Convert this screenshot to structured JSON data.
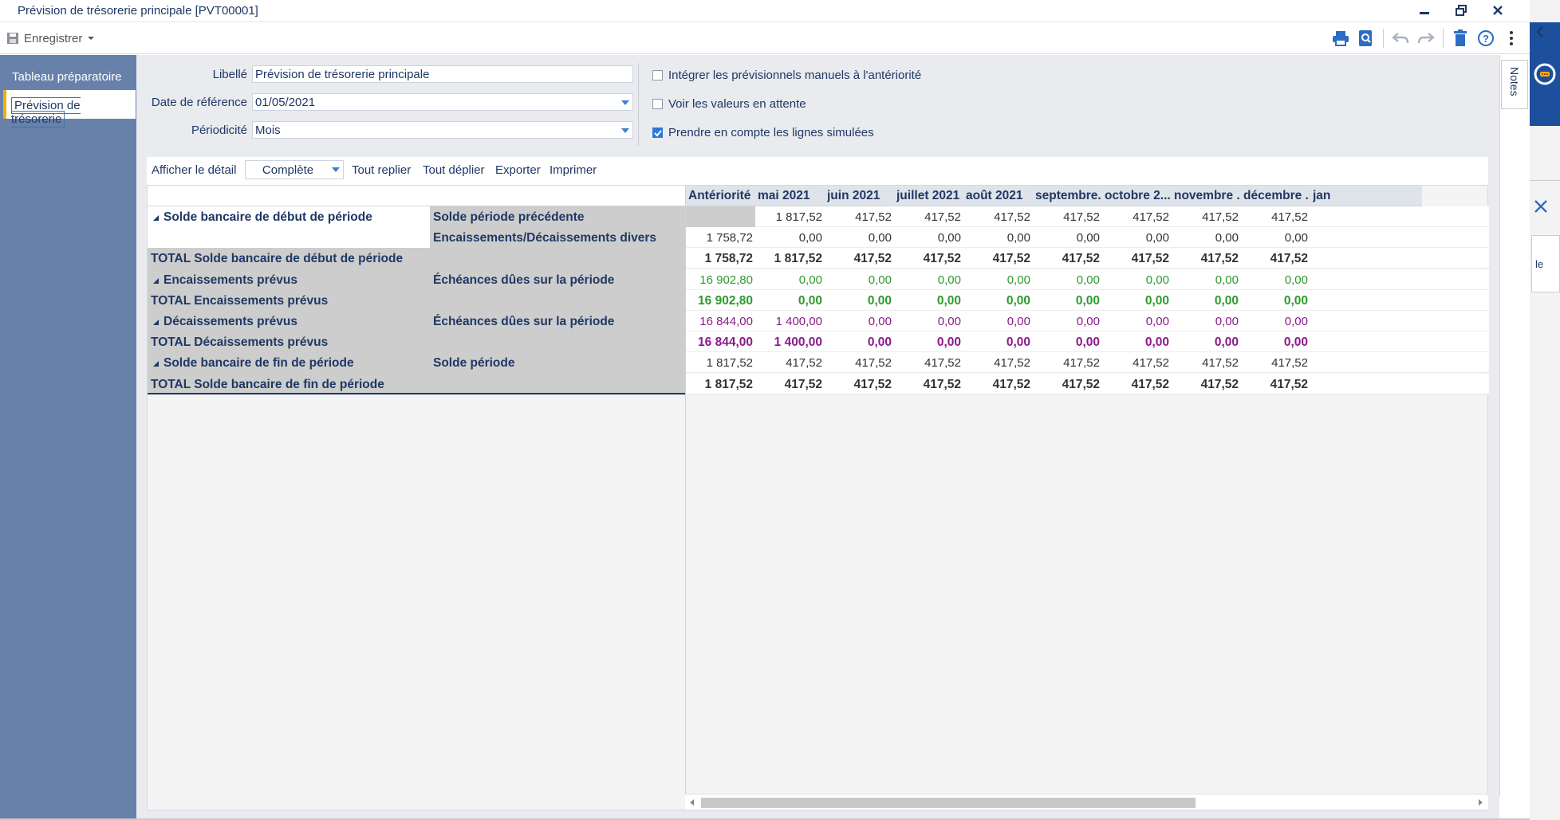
{
  "window": {
    "title": "Prévision de trésorerie principale [PVT00001]"
  },
  "toolbar": {
    "save_label": "Enregistrer"
  },
  "sidebar": {
    "items": [
      {
        "label": "Tableau préparatoire"
      },
      {
        "label": "Prévision de trésorerie"
      }
    ]
  },
  "form": {
    "libelle_label": "Libellé",
    "libelle_value": "Prévision de trésorerie principale",
    "date_label": "Date de référence",
    "date_value": "01/05/2021",
    "periodicite_label": "Périodicité",
    "periodicite_value": "Mois",
    "checkboxes": [
      {
        "label": "Intégrer les prévisionnels manuels à l'antériorité",
        "checked": false
      },
      {
        "label": "Voir les valeurs en attente",
        "checked": false
      },
      {
        "label": "Prendre en compte les lignes simulées",
        "checked": true
      }
    ]
  },
  "actions": {
    "detail_label": "Afficher le détail",
    "detail_value": "Complète",
    "collapse_all": "Tout replier",
    "expand_all": "Tout déplier",
    "export": "Exporter",
    "print": "Imprimer"
  },
  "notes_tab": "Notes",
  "sidepanel_fragment": "le",
  "grid": {
    "headers": [
      "Antériorité",
      "mai 2021",
      "juin 2021",
      "juillet 2021",
      "août 2021",
      "septembre...",
      "octobre 2...",
      "novembre ...",
      "décembre ...",
      "jan"
    ],
    "rows": [
      {
        "group": "Solde bancaire de début de période",
        "sub": "Solde période précédente",
        "style": "k",
        "values": [
          "",
          "1 817,52",
          "417,52",
          "417,52",
          "417,52",
          "417,52",
          "417,52",
          "417,52",
          "417,52"
        ]
      },
      {
        "group": "",
        "sub": "Encaissements/Décaissements divers",
        "style": "k",
        "values": [
          "1 758,72",
          "0,00",
          "0,00",
          "0,00",
          "0,00",
          "0,00",
          "0,00",
          "0,00",
          "0,00"
        ]
      },
      {
        "group": "TOTAL Solde bancaire de début de période",
        "sub": "",
        "style": "k b",
        "values": [
          "1 758,72",
          "1 817,52",
          "417,52",
          "417,52",
          "417,52",
          "417,52",
          "417,52",
          "417,52",
          "417,52"
        ]
      },
      {
        "group": "Encaissements prévus",
        "sub": "Échéances dûes sur la période",
        "style": "g",
        "values": [
          "16 902,80",
          "0,00",
          "0,00",
          "0,00",
          "0,00",
          "0,00",
          "0,00",
          "0,00",
          "0,00"
        ]
      },
      {
        "group": "TOTAL Encaissements prévus",
        "sub": "",
        "style": "g b",
        "values": [
          "16 902,80",
          "0,00",
          "0,00",
          "0,00",
          "0,00",
          "0,00",
          "0,00",
          "0,00",
          "0,00"
        ]
      },
      {
        "group": "Décaissements prévus",
        "sub": "Échéances dûes sur la période",
        "style": "p",
        "values": [
          "16 844,00",
          "1 400,00",
          "0,00",
          "0,00",
          "0,00",
          "0,00",
          "0,00",
          "0,00",
          "0,00"
        ]
      },
      {
        "group": "TOTAL Décaissements prévus",
        "sub": "",
        "style": "p b",
        "values": [
          "16 844,00",
          "1 400,00",
          "0,00",
          "0,00",
          "0,00",
          "0,00",
          "0,00",
          "0,00",
          "0,00"
        ]
      },
      {
        "group": "Solde bancaire de fin de période",
        "sub": "Solde période",
        "style": "k",
        "values": [
          "1 817,52",
          "417,52",
          "417,52",
          "417,52",
          "417,52",
          "417,52",
          "417,52",
          "417,52",
          "417,52"
        ]
      },
      {
        "group": "TOTAL Solde bancaire de fin de période",
        "sub": "",
        "style": "k b",
        "values": [
          "1 817,52",
          "417,52",
          "417,52",
          "417,52",
          "417,52",
          "417,52",
          "417,52",
          "417,52",
          "417,52"
        ]
      }
    ],
    "expandable": [
      true,
      false,
      false,
      true,
      false,
      true,
      false,
      true,
      false
    ]
  },
  "colors": {
    "accent": "#6781ab",
    "green": "#2e9a2e",
    "purple": "#8b1a8b",
    "navy": "#1f3864",
    "highlight": "#f2b300"
  }
}
